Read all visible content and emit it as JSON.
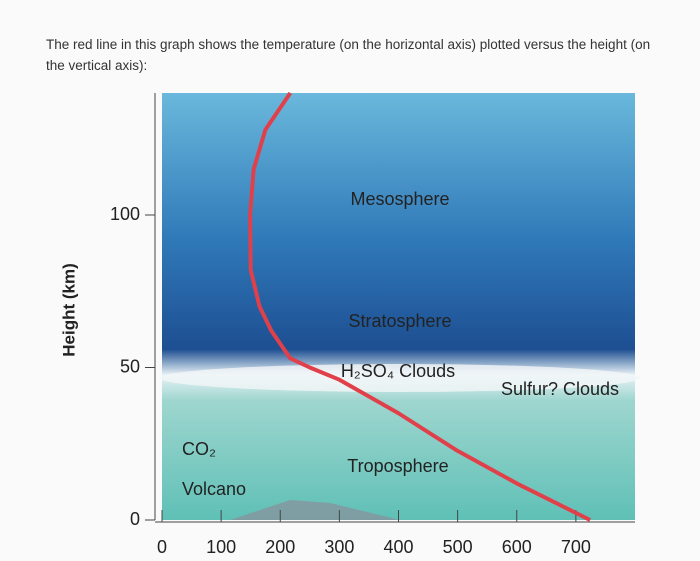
{
  "intro": "The red line in this graph shows the temperature (on the horizontal axis) plotted versus the height (on the vertical axis):",
  "chart_data": {
    "type": "line",
    "y_label": "Height (km)",
    "x": [
      724,
      600,
      497,
      400,
      300,
      250,
      217,
      185,
      165,
      150,
      149,
      155,
      175,
      217
    ],
    "series": [
      {
        "color": "#e0404a",
        "values": [
          0,
          12,
          23,
          35,
          46,
          50,
          53,
          62,
          70,
          82,
          100,
          115,
          128,
          140
        ]
      }
    ],
    "xlim": [
      0,
      800
    ],
    "xticks": [
      0,
      100,
      200,
      300,
      400,
      500,
      600,
      700
    ],
    "ylim": [
      0,
      140
    ],
    "yticks": [
      0,
      50,
      100
    ],
    "annotations": [
      "Mesosphere",
      "Stratosphere",
      "H₂SO₄ Clouds",
      "Sulfur? Clouds",
      "Troposphere",
      "CO₂",
      "Volcano"
    ]
  }
}
